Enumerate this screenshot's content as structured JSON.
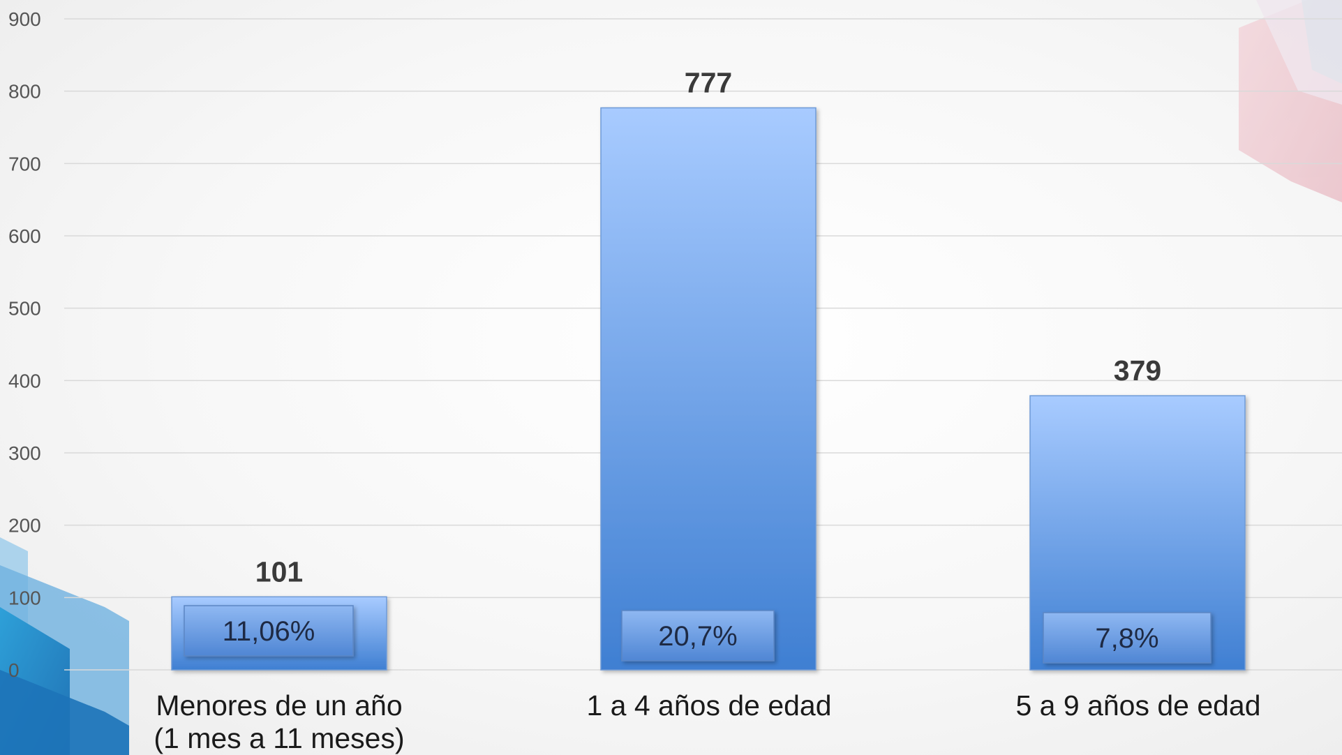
{
  "chart_data": {
    "type": "bar",
    "categories": [
      [
        "Menores de un año",
        "(1 mes a 11 meses)"
      ],
      [
        "1 a 4 años de edad"
      ],
      [
        "5 a 9 años de edad"
      ]
    ],
    "values": [
      101,
      777,
      379
    ],
    "data_labels": [
      "101",
      "777",
      "379"
    ],
    "percent_labels": [
      "11,06%",
      "20,7%",
      "7,8%"
    ],
    "y_ticks": [
      "0",
      "100",
      "200",
      "300",
      "400",
      "500",
      "600",
      "700",
      "800",
      "900"
    ],
    "ylim": [
      0,
      900
    ],
    "grid": true,
    "legend": "none",
    "title": "",
    "xlabel": "",
    "ylabel": "",
    "colors": {
      "bar_top": "#a8cbff",
      "bar_bottom": "#3f7fd2",
      "bar_edge": "#6e9ad6",
      "gridline": "#d9d9d9",
      "axis_text": "#555555",
      "value_text": "#3a3a3a"
    }
  }
}
